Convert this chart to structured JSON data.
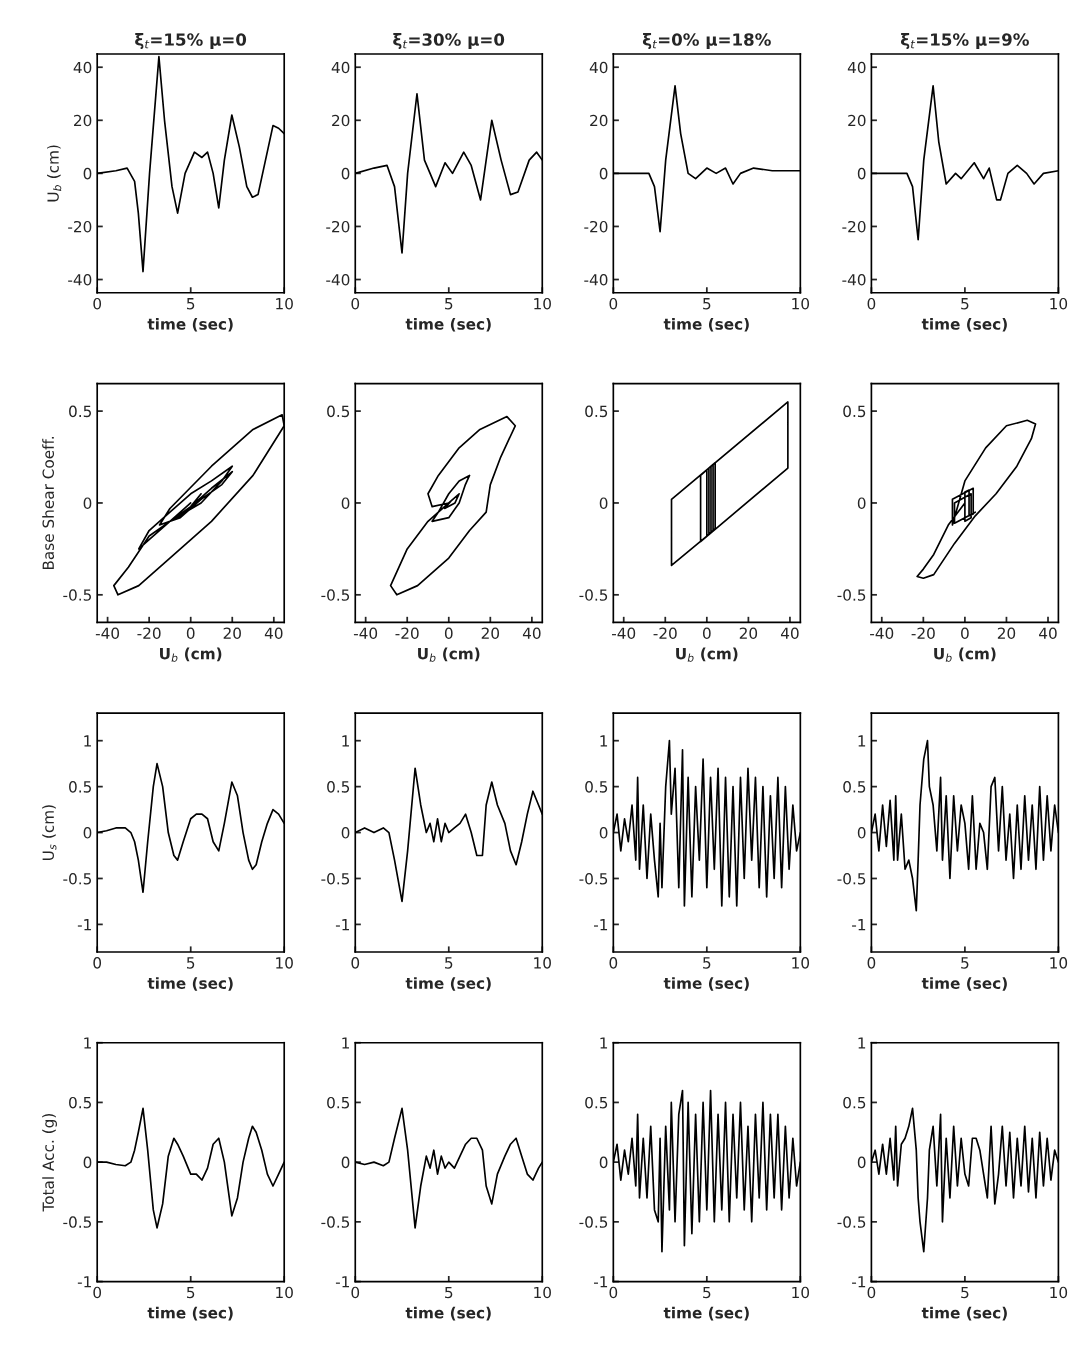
{
  "chart_data": [
    {
      "type": "line",
      "title": "ξ$_{t}$=15% μ=0",
      "xlabel": "time (sec)",
      "ylabel": "U$_{b}$ (cm)",
      "xlim": [
        0,
        10
      ],
      "ylim": [
        -45,
        45
      ],
      "xticks": [
        0,
        5,
        10
      ],
      "yticks": [
        -40,
        -20,
        0,
        20,
        40
      ],
      "color": "#000000",
      "x": [
        0,
        1,
        1.6,
        2.0,
        2.2,
        2.45,
        2.8,
        3.3,
        3.6,
        4.0,
        4.3,
        4.7,
        5.2,
        5.6,
        5.9,
        6.2,
        6.5,
        6.8,
        7.2,
        7.6,
        8.0,
        8.3,
        8.6,
        9.0,
        9.4,
        9.7,
        10
      ],
      "values": [
        0,
        1,
        2,
        -3,
        -15,
        -37,
        0,
        44,
        20,
        -5,
        -15,
        0,
        8,
        6,
        8,
        0,
        -13,
        5,
        22,
        10,
        -5,
        -9,
        -8,
        5,
        18,
        17,
        15
      ]
    },
    {
      "type": "line",
      "title": "ξ$_{t}$=30% μ=0",
      "xlabel": "time (sec)",
      "xlim": [
        0,
        10
      ],
      "ylim": [
        -45,
        45
      ],
      "xticks": [
        0,
        5,
        10
      ],
      "yticks": [
        -40,
        -20,
        0,
        20,
        40
      ],
      "color": "#000000",
      "x": [
        0,
        1,
        1.7,
        2.1,
        2.5,
        2.8,
        3.3,
        3.7,
        4.3,
        4.8,
        5.2,
        5.8,
        6.2,
        6.7,
        7.3,
        7.8,
        8.3,
        8.7,
        9.3,
        9.7,
        10
      ],
      "values": [
        0,
        2,
        3,
        -5,
        -30,
        0,
        30,
        5,
        -5,
        4,
        0,
        8,
        3,
        -10,
        20,
        5,
        -8,
        -7,
        5,
        8,
        5
      ]
    },
    {
      "type": "line",
      "title": "ξ$_{t}$=0% μ=18%",
      "xlabel": "time (sec)",
      "xlim": [
        0,
        10
      ],
      "ylim": [
        -45,
        45
      ],
      "xticks": [
        0,
        5,
        10
      ],
      "yticks": [
        -40,
        -20,
        0,
        20,
        40
      ],
      "color": "#000000",
      "x": [
        0,
        1,
        1.9,
        2.2,
        2.5,
        2.8,
        3.3,
        3.6,
        4.0,
        4.4,
        5.0,
        5.5,
        6.0,
        6.4,
        6.8,
        7.5,
        8.5,
        10
      ],
      "values": [
        0,
        0,
        0,
        -5,
        -22,
        5,
        33,
        15,
        0,
        -2,
        2,
        0,
        2,
        -4,
        0,
        2,
        1,
        1
      ]
    },
    {
      "type": "line",
      "title": "ξ$_{t}$=15% μ=9%",
      "xlabel": "time (sec)",
      "xlim": [
        0,
        10
      ],
      "ylim": [
        -45,
        45
      ],
      "xticks": [
        0,
        5,
        10
      ],
      "yticks": [
        -40,
        -20,
        0,
        20,
        40
      ],
      "color": "#000000",
      "x": [
        0,
        1,
        1.9,
        2.2,
        2.5,
        2.8,
        3.3,
        3.6,
        4.0,
        4.5,
        4.8,
        5.5,
        6.0,
        6.3,
        6.7,
        6.9,
        7.3,
        7.8,
        8.3,
        8.7,
        9.2,
        10
      ],
      "values": [
        0,
        0,
        0,
        -5,
        -25,
        5,
        33,
        12,
        -4,
        0,
        -2,
        4,
        -2,
        2,
        -10,
        -10,
        0,
        3,
        0,
        -4,
        0,
        1
      ]
    },
    {
      "type": "line",
      "xlabel": "U$_{b}$ (cm)",
      "ylabel": "Base Shear Coeff.",
      "xlim": [
        -45,
        45
      ],
      "ylim": [
        -0.65,
        0.65
      ],
      "xticks": [
        -40,
        -20,
        0,
        20,
        40
      ],
      "yticks": [
        -0.5,
        0,
        0.5
      ],
      "color": "#000000",
      "x": [
        0,
        -10,
        -20,
        -25,
        -20,
        -10,
        0,
        10,
        20,
        15,
        5,
        -10,
        -20,
        -30,
        -37,
        -35,
        -25,
        -10,
        10,
        30,
        45,
        44,
        30,
        10,
        -10,
        -15,
        -5,
        5,
        15,
        20,
        10,
        -5,
        -10,
        0,
        5
      ],
      "values": [
        0,
        -0.1,
        -0.2,
        -0.25,
        -0.15,
        -0.05,
        0.05,
        0.12,
        0.2,
        0.12,
        0,
        -0.1,
        -0.18,
        -0.35,
        -0.45,
        -0.5,
        -0.45,
        -0.3,
        -0.1,
        0.15,
        0.42,
        0.48,
        0.4,
        0.2,
        -0.03,
        -0.12,
        -0.08,
        0.02,
        0.1,
        0.17,
        0.08,
        -0.07,
        -0.1,
        -0.02,
        0.05
      ]
    },
    {
      "type": "line",
      "xlabel": "U$_{b}$ (cm)",
      "xlim": [
        -45,
        45
      ],
      "ylim": [
        -0.65,
        0.65
      ],
      "xticks": [
        -40,
        -20,
        0,
        20,
        40
      ],
      "yticks": [
        -0.5,
        0,
        0.5
      ],
      "color": "#000000",
      "x": [
        0,
        -5,
        -8,
        0,
        5,
        8,
        10,
        5,
        0,
        -5,
        -10,
        -20,
        -28,
        -25,
        -15,
        0,
        10,
        18,
        20,
        25,
        32,
        28,
        15,
        5,
        -5,
        -10,
        -8,
        0,
        5,
        3,
        -2,
        1
      ],
      "values": [
        0,
        -0.05,
        -0.1,
        -0.08,
        0,
        0.1,
        0.15,
        0.12,
        0.05,
        -0.05,
        -0.1,
        -0.25,
        -0.45,
        -0.5,
        -0.45,
        -0.3,
        -0.15,
        -0.05,
        0.1,
        0.25,
        0.42,
        0.47,
        0.4,
        0.3,
        0.15,
        0.05,
        -0.02,
        0,
        0.05,
        0,
        -0.03,
        0.01
      ]
    },
    {
      "type": "line",
      "xlabel": "U$_{b}$ (cm)",
      "xlim": [
        -45,
        45
      ],
      "ylim": [
        -0.65,
        0.65
      ],
      "xticks": [
        -40,
        -20,
        0,
        20,
        40
      ],
      "yticks": [
        -0.5,
        0,
        0.5
      ],
      "color": "#000000",
      "x": [
        0,
        -17,
        -17,
        39,
        39,
        -3,
        -3,
        3,
        3,
        0,
        0,
        2,
        2,
        1,
        1,
        4,
        4,
        1
      ],
      "values": [
        -0.18,
        -0.34,
        0.02,
        0.55,
        0.19,
        -0.21,
        0.15,
        0.21,
        -0.15,
        -0.18,
        0.18,
        0.2,
        -0.16,
        -0.17,
        0.19,
        0.22,
        -0.14,
        -0.17
      ]
    },
    {
      "type": "line",
      "xlabel": "U$_{b}$ (cm)",
      "xlim": [
        -45,
        45
      ],
      "ylim": [
        -0.65,
        0.65
      ],
      "xticks": [
        -40,
        -20,
        0,
        20,
        40
      ],
      "yticks": [
        -0.5,
        0,
        0.5
      ],
      "color": "#000000",
      "x": [
        0,
        -8,
        -15,
        -20,
        -23,
        -20,
        -15,
        -5,
        5,
        15,
        25,
        32,
        34,
        30,
        20,
        10,
        0,
        -6,
        -6,
        4,
        4,
        2,
        2,
        0,
        0,
        3,
        3,
        -5,
        -5,
        5
      ],
      "values": [
        0,
        -0.12,
        -0.28,
        -0.36,
        -0.4,
        -0.41,
        -0.39,
        -0.22,
        -0.07,
        0.05,
        0.2,
        0.35,
        0.43,
        0.45,
        0.42,
        0.3,
        0.12,
        -0.12,
        0.02,
        0.08,
        -0.06,
        -0.07,
        0.07,
        0.06,
        -0.1,
        -0.08,
        0.05,
        0,
        -0.11,
        -0.05
      ]
    },
    {
      "type": "line",
      "xlabel": "time (sec)",
      "ylabel": "U$_{s}$ (cm)",
      "xlim": [
        0,
        10
      ],
      "ylim": [
        -1.3,
        1.3
      ],
      "xticks": [
        0,
        5,
        10
      ],
      "yticks": [
        -1,
        -0.5,
        0,
        0.5,
        1
      ],
      "color": "#000000",
      "x": [
        0,
        0.5,
        1,
        1.5,
        1.8,
        2.0,
        2.2,
        2.45,
        2.7,
        3.0,
        3.2,
        3.5,
        3.8,
        4.1,
        4.3,
        4.6,
        5.0,
        5.3,
        5.6,
        5.9,
        6.2,
        6.5,
        6.8,
        7.2,
        7.5,
        7.8,
        8.1,
        8.3,
        8.5,
        8.8,
        9.1,
        9.4,
        9.7,
        10
      ],
      "values": [
        0,
        0.02,
        0.05,
        0.05,
        0,
        -0.1,
        -0.3,
        -0.65,
        -0.1,
        0.5,
        0.75,
        0.5,
        0,
        -0.25,
        -0.3,
        -0.1,
        0.15,
        0.2,
        0.2,
        0.15,
        -0.1,
        -0.2,
        0.1,
        0.55,
        0.4,
        0,
        -0.3,
        -0.4,
        -0.35,
        -0.1,
        0.1,
        0.25,
        0.2,
        0.1
      ]
    },
    {
      "type": "line",
      "xlabel": "time (sec)",
      "xlim": [
        0,
        10
      ],
      "ylim": [
        -1.3,
        1.3
      ],
      "xticks": [
        0,
        5,
        10
      ],
      "yticks": [
        -1,
        -0.5,
        0,
        0.5,
        1
      ],
      "color": "#000000",
      "x": [
        0,
        0.5,
        1,
        1.5,
        1.8,
        2.1,
        2.5,
        2.8,
        3.2,
        3.5,
        3.8,
        4.0,
        4.2,
        4.4,
        4.6,
        4.8,
        5.0,
        5.3,
        5.6,
        5.9,
        6.2,
        6.5,
        6.8,
        7.0,
        7.3,
        7.6,
        8.0,
        8.3,
        8.6,
        8.9,
        9.2,
        9.5,
        9.8,
        10
      ],
      "values": [
        0,
        0.05,
        0,
        0.05,
        0,
        -0.3,
        -0.75,
        -0.2,
        0.7,
        0.3,
        0,
        0.1,
        -0.1,
        0.15,
        -0.1,
        0.1,
        0,
        0.05,
        0.1,
        0.2,
        0,
        -0.25,
        -0.25,
        0.3,
        0.55,
        0.3,
        0.1,
        -0.2,
        -0.35,
        -0.1,
        0.2,
        0.45,
        0.3,
        0.2
      ]
    },
    {
      "type": "line",
      "xlabel": "time (sec)",
      "xlim": [
        0,
        10
      ],
      "ylim": [
        -1.3,
        1.3
      ],
      "xticks": [
        0,
        5,
        10
      ],
      "yticks": [
        -1,
        -0.5,
        0,
        0.5,
        1
      ],
      "color": "#000000",
      "x": [
        0,
        0.2,
        0.4,
        0.6,
        0.8,
        1.0,
        1.2,
        1.3,
        1.4,
        1.6,
        1.8,
        2.0,
        2.2,
        2.4,
        2.5,
        2.6,
        2.8,
        3.0,
        3.1,
        3.3,
        3.5,
        3.7,
        3.8,
        4.0,
        4.2,
        4.4,
        4.6,
        4.8,
        5.0,
        5.2,
        5.4,
        5.6,
        5.8,
        6.0,
        6.2,
        6.4,
        6.6,
        6.8,
        7.0,
        7.2,
        7.4,
        7.6,
        7.8,
        8.0,
        8.2,
        8.4,
        8.6,
        8.8,
        9.0,
        9.2,
        9.4,
        9.6,
        9.8,
        10
      ],
      "values": [
        0,
        0.2,
        -0.2,
        0.15,
        -0.1,
        0.3,
        -0.3,
        0.6,
        -0.4,
        0.3,
        -0.5,
        0.2,
        -0.3,
        -0.7,
        0.1,
        -0.6,
        0.5,
        1.0,
        0.2,
        0.7,
        -0.6,
        0.9,
        -0.8,
        0.6,
        -0.7,
        0.5,
        -0.3,
        0.8,
        -0.6,
        0.6,
        -0.4,
        0.7,
        -0.8,
        0.6,
        -0.7,
        0.5,
        -0.8,
        0.6,
        -0.5,
        0.7,
        -0.3,
        0.6,
        -0.6,
        0.5,
        -0.7,
        0.4,
        -0.5,
        0.6,
        -0.6,
        0.5,
        -0.4,
        0.3,
        -0.2,
        0
      ]
    },
    {
      "type": "line",
      "xlabel": "time (sec)",
      "xlim": [
        0,
        10
      ],
      "ylim": [
        -1.3,
        1.3
      ],
      "xticks": [
        0,
        5,
        10
      ],
      "yticks": [
        -1,
        -0.5,
        0,
        0.5,
        1
      ],
      "color": "#000000",
      "x": [
        0,
        0.2,
        0.4,
        0.6,
        0.8,
        1.0,
        1.2,
        1.3,
        1.4,
        1.6,
        1.8,
        2.0,
        2.2,
        2.4,
        2.5,
        2.6,
        2.8,
        3.0,
        3.1,
        3.3,
        3.5,
        3.7,
        3.8,
        4.0,
        4.2,
        4.4,
        4.6,
        4.8,
        5.0,
        5.2,
        5.4,
        5.6,
        5.8,
        6.0,
        6.2,
        6.4,
        6.6,
        6.8,
        7.0,
        7.2,
        7.4,
        7.6,
        7.8,
        8.0,
        8.2,
        8.4,
        8.6,
        8.8,
        9.0,
        9.2,
        9.4,
        9.6,
        9.8,
        10
      ],
      "values": [
        0,
        0.2,
        -0.2,
        0.3,
        -0.15,
        0.35,
        -0.3,
        0.4,
        -0.3,
        0.2,
        -0.4,
        -0.3,
        -0.5,
        -0.85,
        -0.3,
        0.3,
        0.8,
        1.0,
        0.5,
        0.3,
        -0.2,
        0.6,
        -0.3,
        0.4,
        -0.5,
        0.4,
        -0.2,
        0.3,
        0.1,
        -0.4,
        0.4,
        -0.4,
        0.1,
        0,
        -0.4,
        0.5,
        0.6,
        -0.2,
        0.5,
        -0.3,
        0.2,
        -0.5,
        0.3,
        -0.4,
        0.4,
        -0.3,
        0.3,
        -0.4,
        0.5,
        -0.3,
        0.4,
        -0.2,
        0.3,
        0
      ]
    },
    {
      "type": "line",
      "xlabel": "time (sec)",
      "ylabel": "Total Acc. (g)",
      "xlim": [
        0,
        10
      ],
      "ylim": [
        -1,
        1
      ],
      "xticks": [
        0,
        5,
        10
      ],
      "yticks": [
        -1,
        -0.5,
        0,
        0.5,
        1
      ],
      "color": "#000000",
      "x": [
        0,
        0.5,
        1,
        1.5,
        1.8,
        2.0,
        2.2,
        2.45,
        2.7,
        3.0,
        3.2,
        3.5,
        3.8,
        4.1,
        4.3,
        4.6,
        5.0,
        5.3,
        5.6,
        5.9,
        6.2,
        6.5,
        6.8,
        7.2,
        7.5,
        7.8,
        8.1,
        8.3,
        8.5,
        8.8,
        9.1,
        9.4,
        9.7,
        10
      ],
      "values": [
        0,
        0,
        -0.02,
        -0.03,
        0,
        0.1,
        0.25,
        0.45,
        0.1,
        -0.4,
        -0.55,
        -0.35,
        0.05,
        0.2,
        0.15,
        0.05,
        -0.1,
        -0.1,
        -0.15,
        -0.05,
        0.15,
        0.2,
        0,
        -0.45,
        -0.3,
        0,
        0.2,
        0.3,
        0.25,
        0.1,
        -0.1,
        -0.2,
        -0.1,
        0
      ]
    },
    {
      "type": "line",
      "xlabel": "time (sec)",
      "xlim": [
        0,
        10
      ],
      "ylim": [
        -1,
        1
      ],
      "xticks": [
        0,
        5,
        10
      ],
      "yticks": [
        -1,
        -0.5,
        0,
        0.5,
        1
      ],
      "color": "#000000",
      "x": [
        0,
        0.5,
        1,
        1.5,
        1.8,
        2.1,
        2.5,
        2.8,
        3.2,
        3.5,
        3.8,
        4.0,
        4.2,
        4.4,
        4.6,
        4.8,
        5.0,
        5.3,
        5.6,
        5.9,
        6.2,
        6.5,
        6.8,
        7.0,
        7.3,
        7.6,
        8.0,
        8.3,
        8.6,
        8.9,
        9.2,
        9.5,
        9.8,
        10
      ],
      "values": [
        0,
        -0.02,
        0,
        -0.03,
        0,
        0.2,
        0.45,
        0.1,
        -0.55,
        -0.2,
        0.05,
        -0.05,
        0.1,
        -0.1,
        0.05,
        -0.05,
        0,
        -0.05,
        0.05,
        0.15,
        0.2,
        0.2,
        0.1,
        -0.2,
        -0.35,
        -0.1,
        0.05,
        0.15,
        0.2,
        0.05,
        -0.1,
        -0.15,
        -0.05,
        0
      ]
    },
    {
      "type": "line",
      "xlabel": "time (sec)",
      "xlim": [
        0,
        10
      ],
      "ylim": [
        -1,
        1
      ],
      "xticks": [
        0,
        5,
        10
      ],
      "yticks": [
        -1,
        -0.5,
        0,
        0.5,
        1
      ],
      "color": "#000000",
      "x": [
        0,
        0.2,
        0.4,
        0.6,
        0.8,
        1.0,
        1.2,
        1.3,
        1.4,
        1.6,
        1.8,
        2.0,
        2.2,
        2.4,
        2.5,
        2.6,
        2.8,
        3.0,
        3.1,
        3.3,
        3.5,
        3.7,
        3.8,
        4.0,
        4.2,
        4.4,
        4.6,
        4.8,
        5.0,
        5.2,
        5.4,
        5.6,
        5.8,
        6.0,
        6.2,
        6.4,
        6.6,
        6.8,
        7.0,
        7.2,
        7.4,
        7.6,
        7.8,
        8.0,
        8.2,
        8.4,
        8.6,
        8.8,
        9.0,
        9.2,
        9.4,
        9.6,
        9.8,
        10
      ],
      "values": [
        0,
        0.15,
        -0.15,
        0.1,
        -0.1,
        0.2,
        -0.2,
        0.4,
        -0.3,
        0.2,
        -0.3,
        0.3,
        -0.4,
        -0.5,
        0.2,
        -0.75,
        0.3,
        -0.4,
        0.5,
        -0.5,
        0.4,
        0.6,
        -0.7,
        0.5,
        -0.6,
        0.4,
        -0.5,
        0.5,
        -0.4,
        0.6,
        -0.5,
        0.4,
        -0.4,
        0.5,
        -0.5,
        0.4,
        -0.3,
        0.5,
        -0.4,
        0.3,
        -0.5,
        0.4,
        -0.3,
        0.5,
        -0.4,
        0.4,
        -0.3,
        0.4,
        -0.4,
        0.3,
        -0.3,
        0.2,
        -0.2,
        0
      ]
    },
    {
      "type": "line",
      "xlabel": "time (sec)",
      "xlim": [
        0,
        10
      ],
      "ylim": [
        -1,
        1
      ],
      "xticks": [
        0,
        5,
        10
      ],
      "yticks": [
        -1,
        -0.5,
        0,
        0.5,
        1
      ],
      "color": "#000000",
      "x": [
        0,
        0.2,
        0.4,
        0.6,
        0.8,
        1.0,
        1.2,
        1.3,
        1.4,
        1.6,
        1.8,
        2.0,
        2.2,
        2.4,
        2.5,
        2.6,
        2.8,
        3.0,
        3.1,
        3.3,
        3.5,
        3.7,
        3.8,
        4.0,
        4.2,
        4.4,
        4.6,
        4.8,
        5.0,
        5.2,
        5.4,
        5.6,
        5.8,
        6.0,
        6.2,
        6.4,
        6.6,
        6.8,
        7.0,
        7.2,
        7.4,
        7.6,
        7.8,
        8.0,
        8.2,
        8.4,
        8.6,
        8.8,
        9.0,
        9.2,
        9.4,
        9.6,
        9.8,
        10
      ],
      "values": [
        0,
        0.1,
        -0.1,
        0.15,
        -0.1,
        0.2,
        -0.15,
        0.3,
        -0.2,
        0.15,
        0.2,
        0.3,
        0.45,
        0.1,
        -0.3,
        -0.5,
        -0.75,
        -0.3,
        0.1,
        0.3,
        -0.2,
        0.4,
        -0.5,
        0.2,
        -0.3,
        0.3,
        -0.2,
        0.2,
        -0.1,
        -0.2,
        0.2,
        0.2,
        0.1,
        -0.1,
        -0.3,
        0.3,
        -0.35,
        -0.1,
        0.3,
        -0.2,
        0.25,
        -0.3,
        0.2,
        -0.2,
        0.3,
        -0.25,
        0.2,
        -0.3,
        0.25,
        -0.2,
        0.2,
        -0.15,
        0.1,
        0
      ]
    }
  ]
}
